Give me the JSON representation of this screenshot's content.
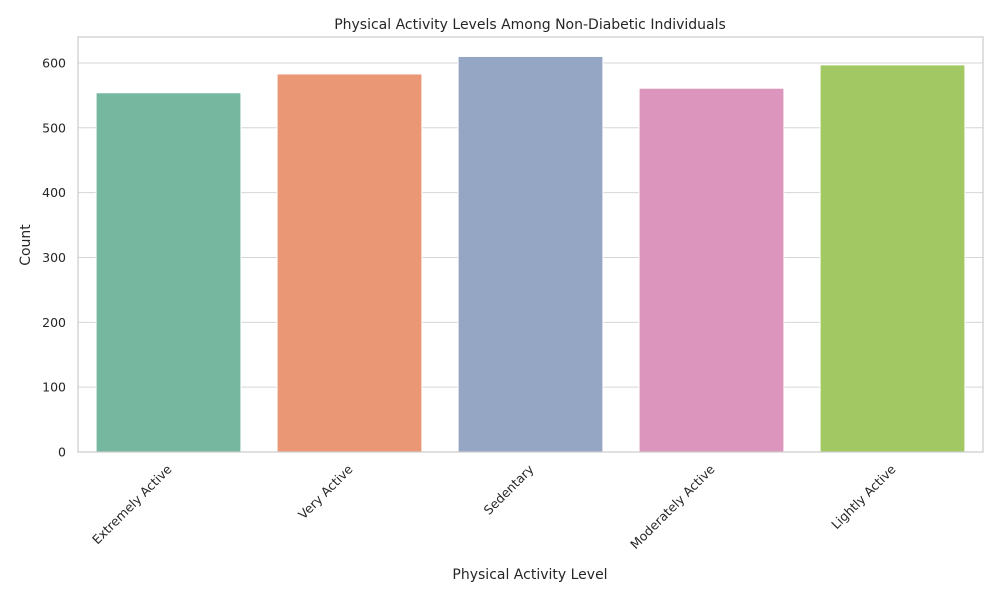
{
  "chart_data": {
    "type": "bar",
    "title": "Physical Activity Levels Among Non-Diabetic Individuals",
    "xlabel": "Physical Activity Level",
    "ylabel": "Count",
    "categories": [
      "Extremely Active",
      "Very Active",
      "Sedentary",
      "Moderately Active",
      "Lightly Active"
    ],
    "values": [
      554,
      583,
      610,
      561,
      597
    ],
    "colors": [
      "#76b7a0",
      "#ea9775",
      "#95a5c4",
      "#dc95bd",
      "#a2c864"
    ],
    "ylim": [
      0,
      640
    ],
    "yticks": [
      0,
      100,
      200,
      300,
      400,
      500,
      600
    ],
    "grid": true,
    "legend": "none"
  }
}
